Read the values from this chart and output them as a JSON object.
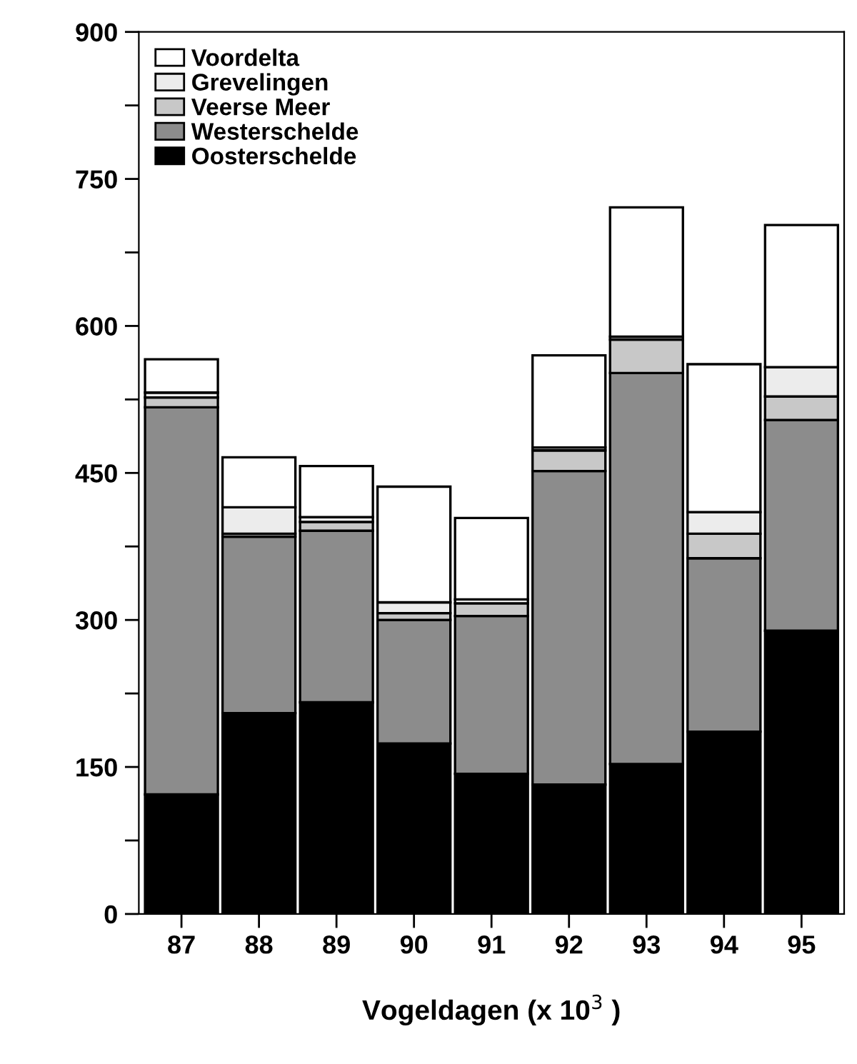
{
  "chart_data": {
    "type": "bar",
    "stacked": true,
    "xlabel": "Vogeldagen (x 10$^{3}$ )",
    "categories": [
      "87",
      "88",
      "89",
      "90",
      "91",
      "92",
      "93",
      "94",
      "95"
    ],
    "series": [
      {
        "name": "Oosterschelde",
        "color": "#000000",
        "values": [
          122,
          205,
          216,
          174,
          143,
          132,
          153,
          186,
          289
        ]
      },
      {
        "name": "Westerschelde",
        "color": "#8c8c8c",
        "values": [
          395,
          180,
          175,
          126,
          161,
          320,
          399,
          177,
          215
        ]
      },
      {
        "name": "Veerse Meer",
        "color": "#c8c8c8",
        "values": [
          10,
          3,
          9,
          7,
          13,
          21,
          34,
          25,
          24
        ]
      },
      {
        "name": "Grevelingen",
        "color": "#ececec",
        "values": [
          5,
          27,
          5,
          11,
          4,
          3,
          3,
          22,
          30
        ]
      },
      {
        "name": "Voordelta",
        "color": "#ffffff",
        "values": [
          34,
          51,
          52,
          118,
          83,
          94,
          132,
          151,
          145
        ]
      }
    ],
    "ylim": [
      0,
      900
    ],
    "yticks": [
      0,
      {
        "value": 75,
        "label": null
      },
      150,
      {
        "value": 225,
        "label": null
      },
      300,
      {
        "value": 375,
        "label": null
      },
      450,
      {
        "value": 525,
        "label": null
      },
      600,
      {
        "value": 675,
        "label": null
      },
      750,
      {
        "value": 825,
        "label": null
      },
      900
    ],
    "legend": "top left",
    "grid": false
  }
}
